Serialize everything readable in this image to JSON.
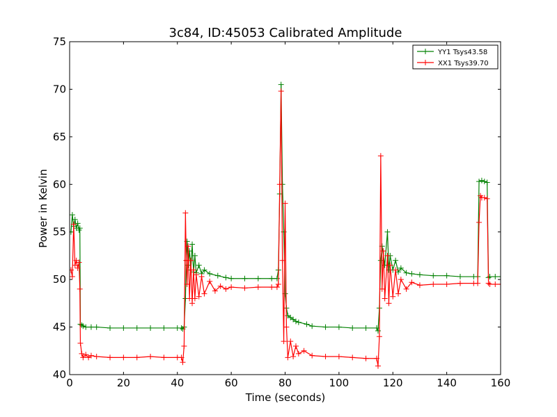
{
  "chart_data": {
    "type": "line",
    "title": "3c84, ID:45053 Calibrated Amplitude",
    "xlabel": "Time (seconds)",
    "ylabel": "Power in Kelvin",
    "xlim": [
      0,
      160
    ],
    "ylim": [
      40,
      75
    ],
    "xticks": [
      0,
      20,
      40,
      60,
      80,
      100,
      120,
      140,
      160
    ],
    "yticks": [
      40,
      45,
      50,
      55,
      60,
      65,
      70,
      75
    ],
    "grid": false,
    "legend_position": "top-right",
    "marker": "+",
    "series": [
      {
        "name": "YY1 Tsys43.58",
        "color": "#008000",
        "points": [
          [
            0.5,
            55
          ],
          [
            1,
            56.8
          ],
          [
            1.5,
            55.6
          ],
          [
            2,
            56.3
          ],
          [
            2.5,
            55.4
          ],
          [
            3,
            55.9
          ],
          [
            3.5,
            55.2
          ],
          [
            3.8,
            55.4
          ],
          [
            4,
            45.3
          ],
          [
            4.5,
            45.2
          ],
          [
            5,
            45.1
          ],
          [
            6,
            45.0
          ],
          [
            8,
            45.0
          ],
          [
            10,
            45.0
          ],
          [
            15,
            44.9
          ],
          [
            20,
            44.9
          ],
          [
            25,
            44.9
          ],
          [
            30,
            44.9
          ],
          [
            35,
            44.9
          ],
          [
            40,
            44.9
          ],
          [
            41.5,
            44.9
          ],
          [
            42,
            44.8
          ],
          [
            42.5,
            45.0
          ],
          [
            43,
            48.0
          ],
          [
            43.3,
            52.0
          ],
          [
            43.6,
            54.0
          ],
          [
            44,
            51.5
          ],
          [
            44.5,
            53.0
          ],
          [
            45,
            51.0
          ],
          [
            45.5,
            53.7
          ],
          [
            46,
            50.8
          ],
          [
            46.5,
            52.5
          ],
          [
            47,
            50.7
          ],
          [
            48,
            51.5
          ],
          [
            49,
            50.6
          ],
          [
            50,
            51.0
          ],
          [
            52,
            50.6
          ],
          [
            55,
            50.4
          ],
          [
            58,
            50.2
          ],
          [
            60,
            50.1
          ],
          [
            65,
            50.1
          ],
          [
            70,
            50.1
          ],
          [
            75,
            50.1
          ],
          [
            77,
            50.1
          ],
          [
            77.5,
            51.0
          ],
          [
            78,
            59.0
          ],
          [
            78.5,
            70.5
          ],
          [
            79,
            60.0
          ],
          [
            79.5,
            55.0
          ],
          [
            80,
            48.5
          ],
          [
            80.5,
            47.0
          ],
          [
            81,
            46.2
          ],
          [
            82,
            46.0
          ],
          [
            83,
            45.8
          ],
          [
            84,
            45.6
          ],
          [
            85,
            45.5
          ],
          [
            88,
            45.3
          ],
          [
            90,
            45.1
          ],
          [
            95,
            45.0
          ],
          [
            100,
            45.0
          ],
          [
            105,
            44.9
          ],
          [
            110,
            44.9
          ],
          [
            114,
            44.9
          ],
          [
            114.5,
            44.6
          ],
          [
            115,
            47.0
          ],
          [
            115.5,
            52.0
          ],
          [
            116,
            53.5
          ],
          [
            117,
            51.5
          ],
          [
            118,
            55.0
          ],
          [
            118.5,
            51.0
          ],
          [
            119,
            52.5
          ],
          [
            120,
            51.0
          ],
          [
            121,
            52.0
          ],
          [
            122,
            50.8
          ],
          [
            123,
            51.2
          ],
          [
            125,
            50.7
          ],
          [
            127,
            50.6
          ],
          [
            130,
            50.5
          ],
          [
            135,
            50.4
          ],
          [
            140,
            50.4
          ],
          [
            145,
            50.3
          ],
          [
            150,
            50.3
          ],
          [
            151.5,
            50.3
          ],
          [
            152,
            60.3
          ],
          [
            153,
            60.4
          ],
          [
            154,
            60.3
          ],
          [
            155,
            60.2
          ],
          [
            155.5,
            50.2
          ],
          [
            156,
            50.3
          ],
          [
            158,
            50.3
          ],
          [
            160,
            50.3
          ]
        ]
      },
      {
        "name": "XX1 Tsys39.70",
        "color": "#ff0000",
        "points": [
          [
            0.5,
            51.0
          ],
          [
            1,
            50.3
          ],
          [
            1.5,
            55.8
          ],
          [
            2,
            51.5
          ],
          [
            2.5,
            52.0
          ],
          [
            3,
            51.2
          ],
          [
            3.5,
            51.8
          ],
          [
            3.8,
            49.0
          ],
          [
            4,
            43.3
          ],
          [
            4.5,
            42.2
          ],
          [
            5,
            41.8
          ],
          [
            6,
            42.1
          ],
          [
            7,
            41.8
          ],
          [
            8,
            42.0
          ],
          [
            10,
            41.9
          ],
          [
            15,
            41.8
          ],
          [
            20,
            41.8
          ],
          [
            25,
            41.8
          ],
          [
            30,
            41.9
          ],
          [
            35,
            41.8
          ],
          [
            40,
            41.8
          ],
          [
            41.5,
            41.8
          ],
          [
            42,
            41.3
          ],
          [
            42.5,
            43.0
          ],
          [
            43,
            57.0
          ],
          [
            43.3,
            52.0
          ],
          [
            43.6,
            49.5
          ],
          [
            44,
            53.5
          ],
          [
            44.5,
            48.0
          ],
          [
            45,
            52.0
          ],
          [
            45.5,
            47.5
          ],
          [
            46,
            51.0
          ],
          [
            46.5,
            48.0
          ],
          [
            47,
            50.5
          ],
          [
            48,
            48.2
          ],
          [
            49,
            50.3
          ],
          [
            50,
            48.5
          ],
          [
            52,
            49.8
          ],
          [
            54,
            48.8
          ],
          [
            56,
            49.3
          ],
          [
            58,
            49.0
          ],
          [
            60,
            49.2
          ],
          [
            65,
            49.1
          ],
          [
            70,
            49.2
          ],
          [
            75,
            49.2
          ],
          [
            77,
            49.2
          ],
          [
            77.5,
            49.5
          ],
          [
            78,
            60.0
          ],
          [
            78.5,
            69.8
          ],
          [
            79,
            52.0
          ],
          [
            79.5,
            43.5
          ],
          [
            80,
            58.0
          ],
          [
            80.5,
            45.0
          ],
          [
            81,
            41.8
          ],
          [
            82,
            43.5
          ],
          [
            83,
            41.9
          ],
          [
            84,
            43.0
          ],
          [
            85,
            42.2
          ],
          [
            87,
            42.5
          ],
          [
            90,
            42.0
          ],
          [
            95,
            41.9
          ],
          [
            100,
            41.9
          ],
          [
            105,
            41.8
          ],
          [
            110,
            41.7
          ],
          [
            114,
            41.7
          ],
          [
            114.5,
            40.9
          ],
          [
            115,
            44.0
          ],
          [
            115.5,
            63.0
          ],
          [
            116,
            49.0
          ],
          [
            116.5,
            53.0
          ],
          [
            117,
            48.0
          ],
          [
            118,
            52.5
          ],
          [
            118.5,
            47.5
          ],
          [
            119,
            51.5
          ],
          [
            120,
            48.2
          ],
          [
            121,
            51.0
          ],
          [
            122,
            48.5
          ],
          [
            123,
            50.0
          ],
          [
            125,
            49.0
          ],
          [
            127,
            49.7
          ],
          [
            130,
            49.4
          ],
          [
            135,
            49.5
          ],
          [
            140,
            49.5
          ],
          [
            145,
            49.6
          ],
          [
            150,
            49.6
          ],
          [
            151.5,
            49.6
          ],
          [
            152,
            56.0
          ],
          [
            152.5,
            58.8
          ],
          [
            153,
            58.6
          ],
          [
            154,
            58.6
          ],
          [
            155,
            58.5
          ],
          [
            155.5,
            49.6
          ],
          [
            156,
            49.5
          ],
          [
            158,
            49.5
          ],
          [
            160,
            49.5
          ]
        ]
      }
    ]
  }
}
